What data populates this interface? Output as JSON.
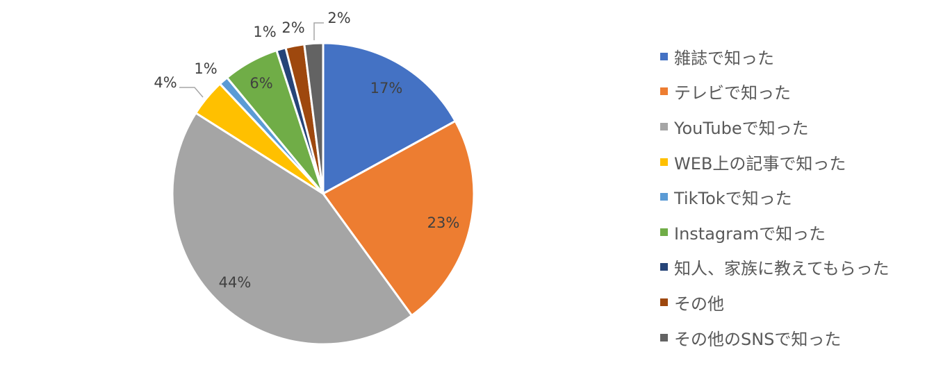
{
  "chart_data": {
    "type": "pie",
    "title": "",
    "legend_position": "right",
    "slices": [
      {
        "label": "雑誌で知った",
        "value": 17,
        "display": "17%",
        "color": "#4472c4"
      },
      {
        "label": "テレビで知った",
        "value": 23,
        "display": "23%",
        "color": "#ed7d31"
      },
      {
        "label": "YouTubeで知った",
        "value": 44,
        "display": "44%",
        "color": "#a5a5a5"
      },
      {
        "label": "WEB上の記事で知った",
        "value": 4,
        "display": "4%",
        "color": "#ffc000"
      },
      {
        "label": "TikTokで知った",
        "value": 1,
        "display": "1%",
        "color": "#5b9bd5"
      },
      {
        "label": "Instagramで知った",
        "value": 6,
        "display": "6%",
        "color": "#70ad47"
      },
      {
        "label": "知人、家族に教えてもらった",
        "value": 1,
        "display": "1%",
        "color": "#264478"
      },
      {
        "label": "その他",
        "value": 2,
        "display": "2%",
        "color": "#9e480e"
      },
      {
        "label": "その他のSNSで知った",
        "value": 2,
        "display": "2%",
        "color": "#636363"
      }
    ]
  }
}
